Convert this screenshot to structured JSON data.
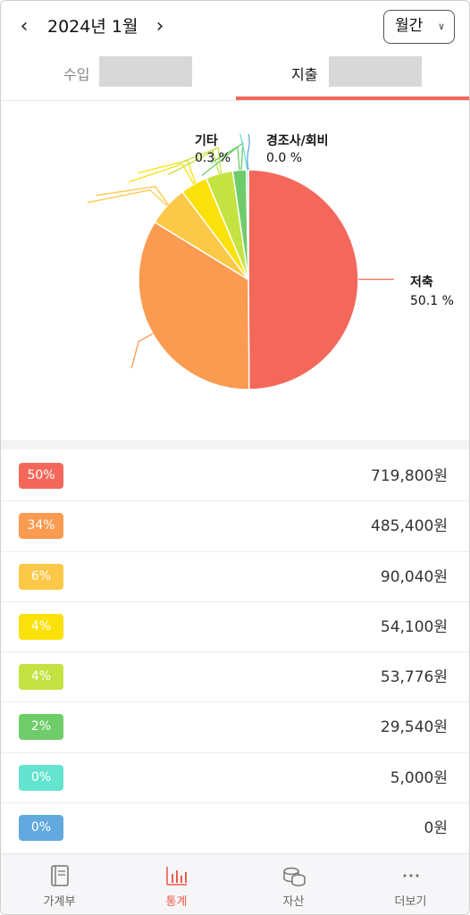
{
  "header": {
    "prev_icon": "chevron-left-icon",
    "next_icon": "chevron-right-icon",
    "month": "2024년 1월",
    "period": {
      "selected": "월간",
      "icon": "chevron-down-icon"
    }
  },
  "tabs": [
    {
      "label": "수입",
      "active": false
    },
    {
      "label": "지출",
      "active": true
    }
  ],
  "chart_data": {
    "type": "pie",
    "title": "",
    "start": "12 o'clock, clockwise",
    "slices": [
      {
        "value": 50.1,
        "color": "#f4685b"
      },
      {
        "value": 34,
        "color": "#fb9a51"
      },
      {
        "value": 6,
        "color": "#fbc847"
      },
      {
        "value": 4,
        "color": "#fbe10a"
      },
      {
        "value": 4,
        "color": "#c4e343"
      },
      {
        "value": 2,
        "color": "#6fcc6a"
      },
      {
        "value": 0.3,
        "color": "#64e3cf"
      },
      {
        "value": 0.0,
        "color": "#62a9e0"
      }
    ],
    "labels": [
      {
        "name": "저축",
        "percent": "50.1 %"
      },
      {
        "name": "기타",
        "percent": "0.3 %"
      },
      {
        "name": "경조사/회비",
        "percent": "0.0 %"
      }
    ]
  },
  "list": [
    {
      "percent": "50%",
      "amount": "719,800원",
      "color": "#f4685b"
    },
    {
      "percent": "34%",
      "amount": "485,400원",
      "color": "#fb9a51"
    },
    {
      "percent": "6%",
      "amount": "90,040원",
      "color": "#fbc847"
    },
    {
      "percent": "4%",
      "amount": "54,100원",
      "color": "#fbe10a"
    },
    {
      "percent": "4%",
      "amount": "53,776원",
      "color": "#c4e343"
    },
    {
      "percent": "2%",
      "amount": "29,540원",
      "color": "#6fcc6a"
    },
    {
      "percent": "0%",
      "amount": "5,000원",
      "color": "#64e3cf"
    },
    {
      "percent": "0%",
      "amount": "0원",
      "color": "#62a9e0"
    }
  ],
  "bottom_nav": [
    {
      "label": "가계부",
      "icon": "book-icon",
      "active": false
    },
    {
      "label": "통계",
      "icon": "bar-chart-icon",
      "active": true
    },
    {
      "label": "자산",
      "icon": "coins-icon",
      "active": false
    },
    {
      "label": "더보기",
      "icon": "more-icon",
      "active": false
    }
  ],
  "colors": {
    "accent": "#ef5a4c",
    "tab_underline": "#ef6a5c"
  }
}
